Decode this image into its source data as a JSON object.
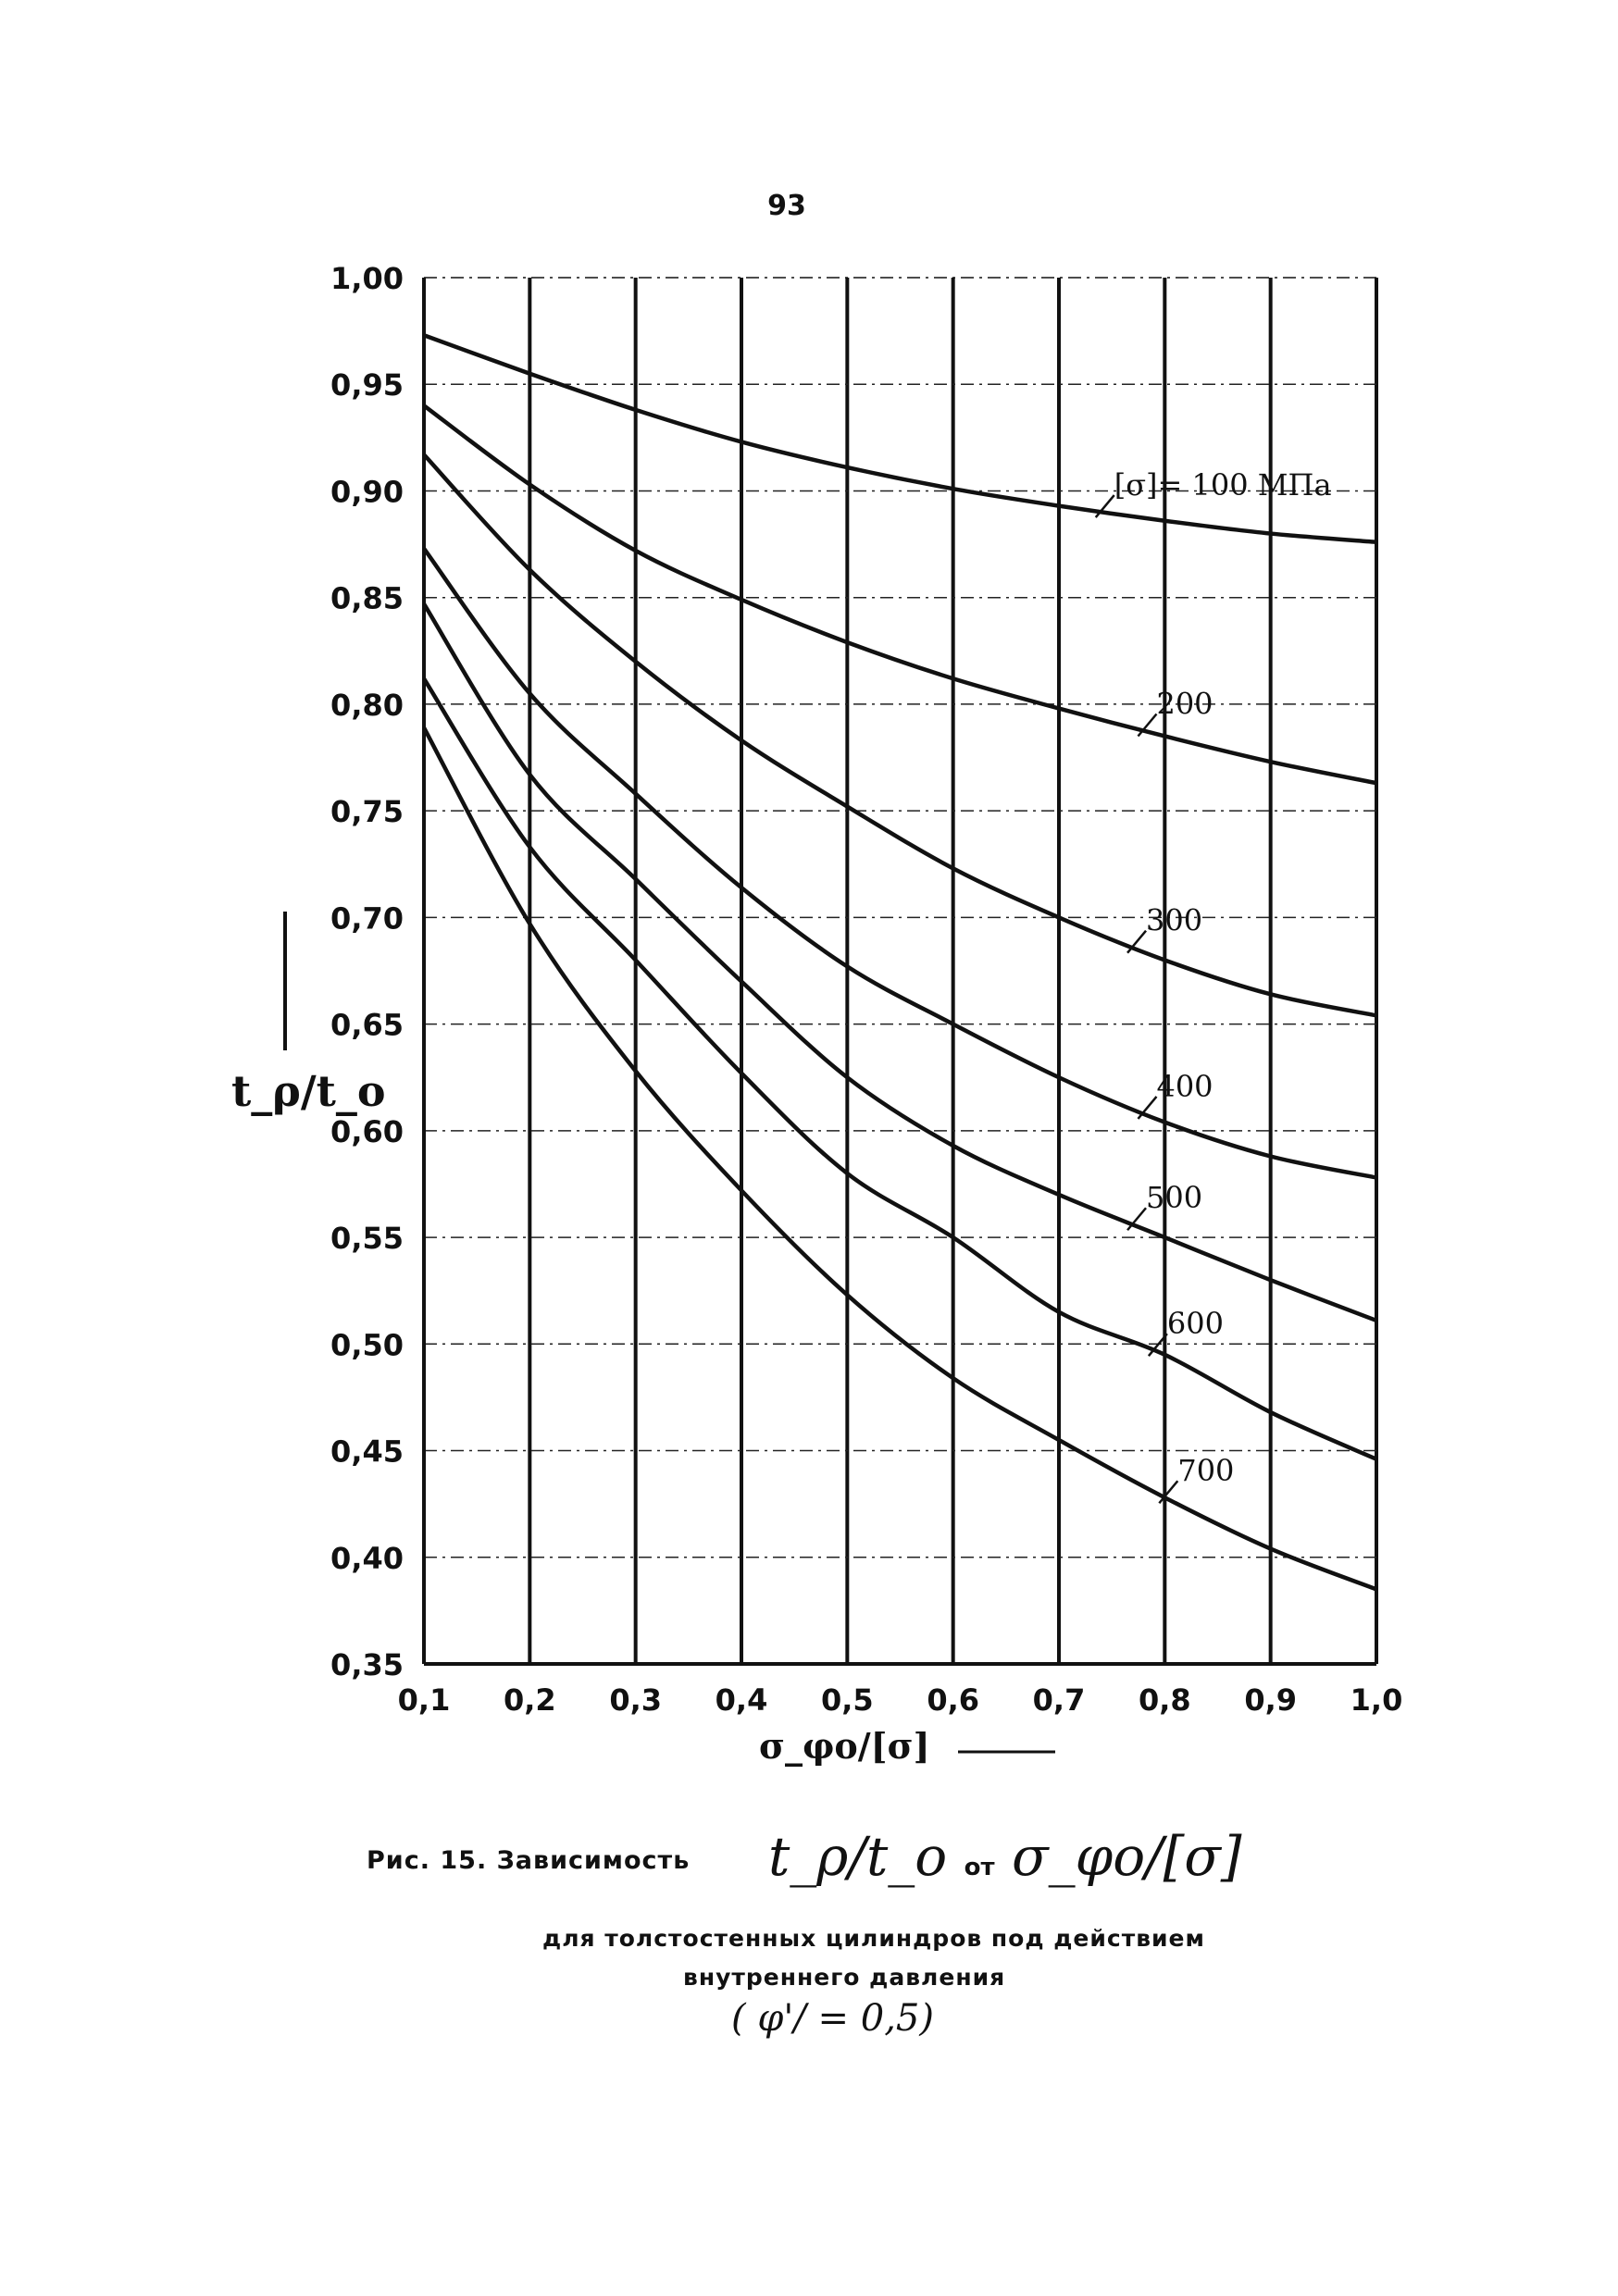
{
  "page": {
    "number": "93"
  },
  "chart_data": {
    "type": "line",
    "ylabel": "t_ρ/t_o",
    "xlabel": "σ_φo/[σ]",
    "xlim": [
      0.1,
      1.0
    ],
    "ylim": [
      0.35,
      1.0
    ],
    "x_tick_labels": [
      "0,1",
      "0,2",
      "0,3",
      "0,4",
      "0,5",
      "0,6",
      "0,7",
      "0,8",
      "0,9",
      "1,0"
    ],
    "y_tick_labels": [
      "1,00",
      "0,95",
      "0,90",
      "0,85",
      "0,80",
      "0,75",
      "0,70",
      "0,65",
      "0,60",
      "0,55",
      "0,50",
      "0,45",
      "0,40",
      "0,35"
    ],
    "grid": "vertical solid, horizontal dashed",
    "legend_prefix": "[σ]=",
    "x": [
      0.1,
      0.2,
      0.3,
      0.4,
      0.5,
      0.6,
      0.7,
      0.8,
      0.9,
      1.0
    ],
    "series": [
      {
        "name": "100 MПа",
        "label": "100 MПа",
        "values": [
          0.973,
          0.955,
          0.938,
          0.923,
          0.911,
          0.901,
          0.893,
          0.886,
          0.88,
          0.876
        ]
      },
      {
        "name": "200",
        "label": "200",
        "values": [
          0.94,
          0.903,
          0.872,
          0.849,
          0.829,
          0.812,
          0.798,
          0.785,
          0.773,
          0.763
        ]
      },
      {
        "name": "300",
        "label": "300",
        "values": [
          0.917,
          0.863,
          0.82,
          0.783,
          0.752,
          0.723,
          0.7,
          0.68,
          0.664,
          0.654
        ]
      },
      {
        "name": "400",
        "label": "400",
        "values": [
          0.873,
          0.805,
          0.758,
          0.714,
          0.677,
          0.65,
          0.625,
          0.604,
          0.588,
          0.578
        ]
      },
      {
        "name": "500",
        "label": "500",
        "values": [
          0.847,
          0.767,
          0.718,
          0.67,
          0.625,
          0.593,
          0.57,
          0.55,
          0.53,
          0.511
        ]
      },
      {
        "name": "600",
        "label": "600",
        "values": [
          0.812,
          0.733,
          0.68,
          0.627,
          0.58,
          0.55,
          0.515,
          0.495,
          0.468,
          0.446
        ]
      },
      {
        "name": "700",
        "label": "700",
        "values": [
          0.789,
          0.697,
          0.628,
          0.572,
          0.523,
          0.484,
          0.455,
          0.428,
          0.404,
          0.385
        ]
      }
    ]
  },
  "caption": {
    "line1": "Рис. 15. Зависимость",
    "formula_left": "t_ρ/t_o",
    "formula_mid": "от",
    "formula_right": "σ_φo/[σ]",
    "line2": "для толстостенных цилиндров под действием",
    "line3": "внутреннего давления",
    "line4": "( φ'/ = 0,5)"
  }
}
